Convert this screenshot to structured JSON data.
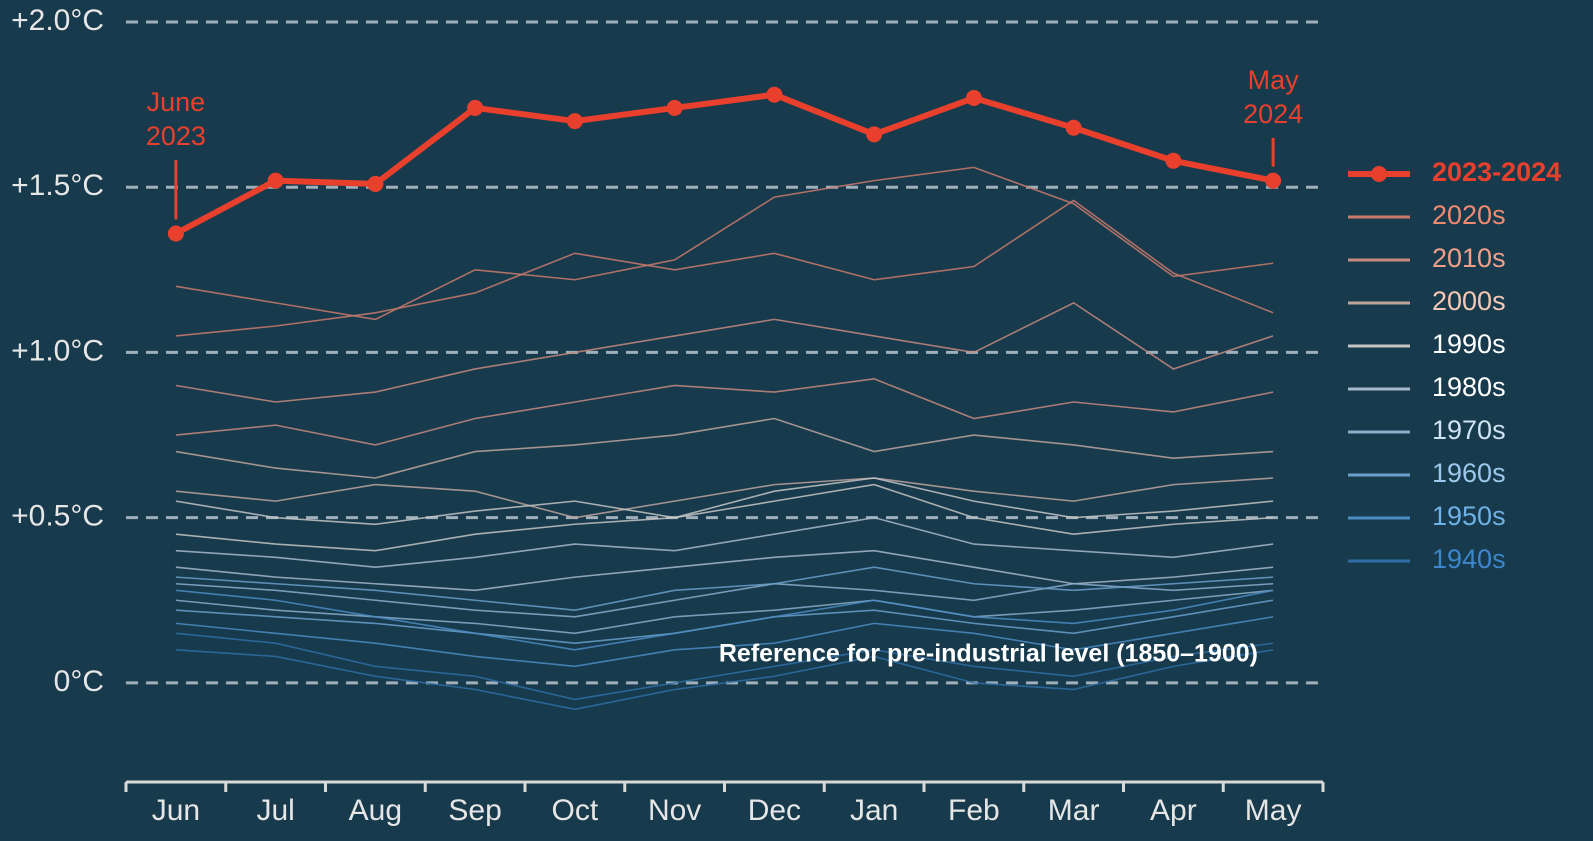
{
  "chart_data": {
    "type": "line",
    "categories": [
      "Jun",
      "Jul",
      "Aug",
      "Sep",
      "Oct",
      "Nov",
      "Dec",
      "Jan",
      "Feb",
      "Mar",
      "Apr",
      "May"
    ],
    "ylim": [
      -0.3,
      2.0
    ],
    "yticks": [
      {
        "value": 0,
        "label": "0°C"
      },
      {
        "value": 0.5,
        "label": "+0.5°C"
      },
      {
        "value": 1.0,
        "label": "+1.0°C"
      },
      {
        "value": 1.5,
        "label": "+1.5°C"
      },
      {
        "value": 2.0,
        "label": "+2.0°C"
      }
    ],
    "grid": true,
    "legend": "right",
    "series": [
      {
        "name": "2023-2024",
        "color": "#e8402c",
        "values": [
          1.36,
          1.52,
          1.51,
          1.74,
          1.7,
          1.74,
          1.78,
          1.66,
          1.77,
          1.68,
          1.58,
          1.52
        ]
      }
    ],
    "decades": [
      {
        "name": "2020s",
        "color": "#c97a6c",
        "label_color": "#f08a70",
        "lines": [
          [
            1.2,
            1.15,
            1.1,
            1.25,
            1.22,
            1.28,
            1.47,
            1.52,
            1.56,
            1.45,
            1.23,
            1.27
          ],
          [
            1.05,
            1.08,
            1.12,
            1.18,
            1.3,
            1.25,
            1.3,
            1.22,
            1.26,
            1.46,
            1.24,
            1.12
          ]
        ]
      },
      {
        "name": "2010s",
        "color": "#c48a7e",
        "label_color": "#f0a088",
        "lines": [
          [
            0.9,
            0.85,
            0.88,
            0.95,
            1.0,
            1.05,
            1.1,
            1.05,
            1.0,
            1.15,
            0.95,
            1.05
          ],
          [
            0.75,
            0.78,
            0.72,
            0.8,
            0.85,
            0.9,
            0.88,
            0.92,
            0.8,
            0.85,
            0.82,
            0.88
          ]
        ]
      },
      {
        "name": "2000s",
        "color": "#bda59d",
        "label_color": "#f5c8b5",
        "lines": [
          [
            0.7,
            0.65,
            0.62,
            0.7,
            0.72,
            0.75,
            0.8,
            0.7,
            0.75,
            0.72,
            0.68,
            0.7
          ],
          [
            0.58,
            0.55,
            0.6,
            0.58,
            0.5,
            0.55,
            0.6,
            0.62,
            0.58,
            0.55,
            0.6,
            0.62
          ]
        ]
      },
      {
        "name": "1990s",
        "color": "#c4c4c4",
        "label_color": "#ffffff",
        "lines": [
          [
            0.55,
            0.5,
            0.48,
            0.52,
            0.55,
            0.5,
            0.58,
            0.62,
            0.55,
            0.5,
            0.52,
            0.55
          ],
          [
            0.45,
            0.42,
            0.4,
            0.45,
            0.48,
            0.5,
            0.55,
            0.6,
            0.5,
            0.45,
            0.48,
            0.5
          ]
        ]
      },
      {
        "name": "1980s",
        "color": "#a6bac9",
        "label_color": "#ffffff",
        "lines": [
          [
            0.4,
            0.38,
            0.35,
            0.38,
            0.42,
            0.4,
            0.45,
            0.5,
            0.42,
            0.4,
            0.38,
            0.42
          ],
          [
            0.35,
            0.32,
            0.3,
            0.28,
            0.32,
            0.35,
            0.38,
            0.4,
            0.35,
            0.3,
            0.32,
            0.35
          ]
        ]
      },
      {
        "name": "1970s",
        "color": "#8aaecb",
        "label_color": "#cfe3f2",
        "lines": [
          [
            0.3,
            0.28,
            0.25,
            0.22,
            0.2,
            0.25,
            0.3,
            0.28,
            0.25,
            0.3,
            0.28,
            0.3
          ],
          [
            0.25,
            0.22,
            0.2,
            0.18,
            0.15,
            0.2,
            0.22,
            0.25,
            0.2,
            0.22,
            0.25,
            0.28
          ]
        ]
      },
      {
        "name": "1960s",
        "color": "#6aa0cb",
        "label_color": "#9cc8eb",
        "lines": [
          [
            0.32,
            0.3,
            0.28,
            0.25,
            0.22,
            0.28,
            0.3,
            0.35,
            0.3,
            0.28,
            0.3,
            0.32
          ],
          [
            0.22,
            0.2,
            0.18,
            0.15,
            0.12,
            0.15,
            0.2,
            0.22,
            0.18,
            0.15,
            0.2,
            0.25
          ]
        ]
      },
      {
        "name": "1950s",
        "color": "#4b8cc3",
        "label_color": "#6fb0e5",
        "lines": [
          [
            0.28,
            0.25,
            0.2,
            0.15,
            0.1,
            0.15,
            0.2,
            0.25,
            0.2,
            0.18,
            0.22,
            0.28
          ],
          [
            0.18,
            0.15,
            0.12,
            0.08,
            0.05,
            0.1,
            0.12,
            0.18,
            0.15,
            0.1,
            0.15,
            0.2
          ]
        ]
      },
      {
        "name": "1940s",
        "color": "#2f6ea6",
        "label_color": "#3e86cc",
        "lines": [
          [
            0.15,
            0.12,
            0.05,
            0.02,
            -0.05,
            0.0,
            0.05,
            0.1,
            0.05,
            0.02,
            0.08,
            0.12
          ],
          [
            0.1,
            0.08,
            0.02,
            -0.02,
            -0.08,
            -0.02,
            0.02,
            0.08,
            0.0,
            -0.02,
            0.05,
            0.1
          ]
        ]
      }
    ],
    "annotations": {
      "start": [
        "June",
        "2023"
      ],
      "end": [
        "May",
        "2024"
      ],
      "reference": "Reference for pre-industrial level (1850–1900)"
    }
  }
}
